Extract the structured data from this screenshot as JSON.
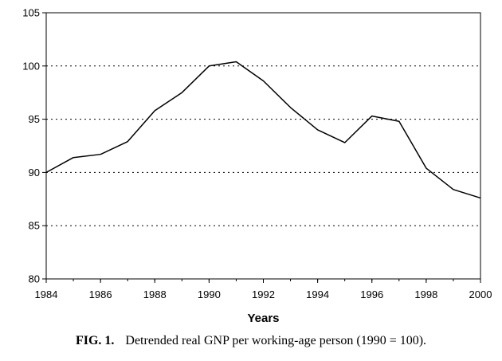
{
  "chart_data": {
    "type": "line",
    "x": [
      1984,
      1985,
      1986,
      1987,
      1988,
      1989,
      1990,
      1991,
      1992,
      1993,
      1994,
      1995,
      1996,
      1997,
      1998,
      1999,
      2000
    ],
    "series": [
      {
        "values": [
          90.0,
          91.4,
          91.7,
          92.9,
          95.8,
          97.5,
          100.0,
          100.4,
          98.6,
          96.1,
          94.0,
          92.8,
          95.3,
          94.8,
          90.4,
          88.4,
          87.6
        ]
      }
    ],
    "xlabel": "Years",
    "ylabel": "",
    "xlim": [
      1984,
      2000
    ],
    "ylim": [
      80,
      105
    ],
    "xticks": [
      "1984",
      "1986",
      "1988",
      "1990",
      "1992",
      "1994",
      "1996",
      "1998",
      "2000"
    ],
    "yticks": [
      "80",
      "85",
      "90",
      "95",
      "100",
      "105"
    ],
    "grid": "horizontal dotted",
    "line_color": "#000000"
  },
  "caption": {
    "label": "FIG. 1.",
    "text": "Detrended real GNP per working-age person (1990 = 100)."
  }
}
